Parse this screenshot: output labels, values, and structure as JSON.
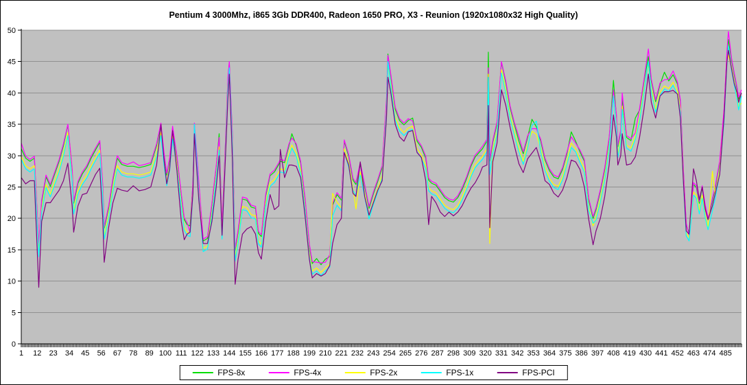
{
  "title": "Pentium 4 3000Mhz, i865 3Gb DDR400, Radeon 1650 PRO, X3 - Reunion (1920x1080x32 High Quality)",
  "chart_data": {
    "type": "line",
    "title": "Pentium 4 3000Mhz, i865 3Gb DDR400, Radeon 1650 PRO, X3 - Reunion (1920x1080x32 High Quality)",
    "plot_bg": "#c0c0c0",
    "gridline_color": "#909090",
    "grid": "horizontal",
    "legend_position": "bottom",
    "y_axis": {
      "min": 0,
      "max": 50,
      "tick_interval": 5,
      "tick_labels": [
        "0",
        "5",
        "10",
        "15",
        "20",
        "25",
        "30",
        "35",
        "40",
        "45",
        "50"
      ]
    },
    "x_axis": {
      "points_total": 496,
      "tick_step": 11,
      "tick_labels": [
        "1",
        "12",
        "23",
        "34",
        "45",
        "56",
        "67",
        "78",
        "89",
        "100",
        "111",
        "122",
        "133",
        "144",
        "155",
        "166",
        "177",
        "188",
        "199",
        "210",
        "221",
        "232",
        "243",
        "254",
        "265",
        "276",
        "287",
        "298",
        "309",
        "320",
        "331",
        "342",
        "353",
        "364",
        "375",
        "386",
        "397",
        "408",
        "419",
        "430",
        "441",
        "452",
        "463",
        "474",
        "485"
      ]
    },
    "x": [
      1,
      4,
      7,
      10,
      13,
      15,
      18,
      21,
      24,
      27,
      30,
      33,
      36,
      37,
      40,
      43,
      46,
      49,
      52,
      55,
      57,
      58,
      61,
      64,
      67,
      70,
      74,
      78,
      82,
      86,
      90,
      94,
      97,
      99,
      101,
      103,
      105,
      108,
      111,
      113,
      115,
      117,
      119,
      120,
      123,
      126,
      129,
      132,
      135,
      137,
      139,
      141,
      143,
      144,
      146,
      148,
      150,
      153,
      156,
      159,
      162,
      164,
      166,
      169,
      172,
      175,
      178,
      179,
      182,
      185,
      187,
      190,
      193,
      196,
      199,
      201,
      204,
      207,
      210,
      213,
      215,
      218,
      221,
      223,
      226,
      229,
      231,
      234,
      237,
      240,
      243,
      246,
      249,
      252,
      253,
      255,
      258,
      261,
      264,
      267,
      270,
      273,
      276,
      279,
      281,
      283,
      286,
      289,
      292,
      295,
      298,
      301,
      304,
      307,
      310,
      313,
      316,
      318,
      321,
      322,
      323,
      325,
      328,
      331,
      334,
      337,
      340,
      343,
      346,
      349,
      352,
      355,
      358,
      361,
      364,
      367,
      370,
      373,
      376,
      379,
      382,
      385,
      388,
      391,
      394,
      396,
      399,
      402,
      405,
      408,
      410,
      411,
      413,
      414,
      417,
      420,
      423,
      426,
      429,
      432,
      434,
      437,
      440,
      443,
      446,
      449,
      452,
      454,
      456,
      458,
      460,
      463,
      465,
      467,
      469,
      471,
      473,
      476,
      478,
      481,
      484,
      486,
      487,
      489,
      491,
      493,
      494,
      496
    ],
    "series": [
      {
        "name": "FPS-8x",
        "color": "#00dd00",
        "values": [
          31.1,
          29.6,
          29.1,
          29.6,
          15.6,
          22.6,
          26.6,
          25.1,
          27.1,
          29.1,
          31.6,
          34.9,
          27.6,
          22.4,
          25.6,
          27.1,
          28.1,
          29.6,
          30.9,
          32.1,
          25.1,
          18.4,
          21.6,
          26.1,
          29.6,
          28.6,
          28.3,
          28.3,
          28.1,
          28.3,
          28.6,
          31.6,
          34.9,
          30.4,
          26.9,
          29.4,
          34.4,
          29.6,
          23.6,
          19.8,
          19.0,
          18.8,
          25.6,
          34.9,
          25.6,
          16.4,
          16.8,
          22.1,
          28.1,
          33.5,
          18.4,
          30.1,
          42.1,
          44.8,
          33.6,
          14.9,
          17.8,
          23.1,
          22.9,
          21.8,
          21.6,
          17.6,
          17.1,
          23.6,
          26.8,
          27.4,
          28.6,
          29.1,
          28.9,
          31.6,
          33.5,
          31.6,
          28.8,
          23.1,
          15.6,
          12.8,
          13.6,
          12.6,
          13.5,
          13.9,
          22.1,
          23.8,
          22.9,
          32.3,
          29.9,
          26.1,
          25.4,
          28.6,
          25.1,
          21.6,
          23.9,
          25.9,
          28.1,
          38.6,
          46.2,
          42.6,
          37.4,
          35.6,
          34.9,
          35.6,
          36.0,
          32.3,
          31.3,
          29.6,
          26.1,
          25.6,
          25.3,
          24.3,
          23.3,
          22.8,
          22.6,
          23.3,
          24.6,
          26.3,
          28.3,
          29.8,
          30.6,
          31.1,
          32.3,
          46.5,
          29.1,
          32.1,
          35.1,
          44.9,
          41.6,
          37.6,
          34.9,
          32.3,
          30.3,
          32.9,
          35.8,
          34.6,
          32.3,
          29.3,
          27.6,
          26.6,
          26.3,
          27.8,
          30.3,
          33.8,
          32.3,
          30.6,
          29.1,
          22.9,
          20.0,
          21.4,
          24.3,
          27.8,
          32.6,
          42.0,
          36.3,
          31.4,
          33.8,
          39.1,
          32.9,
          32.4,
          36.0,
          37.3,
          41.9,
          45.8,
          41.9,
          38.6,
          41.3,
          43.3,
          41.9,
          42.9,
          41.4,
          38.6,
          27.6,
          18.9,
          17.7,
          25.4,
          24.9,
          22.4,
          24.9,
          21.9,
          19.8,
          22.9,
          24.9,
          28.9,
          37.1,
          46.4,
          48.5,
          45.4,
          42.9,
          40.6,
          39.0,
          40.0
        ]
      },
      {
        "name": "FPS-4x",
        "color": "#ff00ff",
        "values": [
          32.0,
          29.9,
          29.4,
          29.9,
          15.9,
          22.9,
          26.9,
          25.4,
          27.4,
          29.4,
          31.9,
          35.0,
          27.9,
          22.7,
          25.9,
          27.4,
          28.4,
          29.9,
          31.2,
          32.4,
          25.4,
          18.7,
          21.9,
          26.4,
          30.0,
          28.9,
          28.6,
          29.0,
          28.4,
          28.6,
          28.9,
          31.9,
          35.2,
          30.7,
          27.2,
          29.7,
          34.7,
          29.9,
          23.9,
          20.1,
          19.3,
          17.8,
          25.9,
          35.2,
          25.9,
          16.7,
          17.1,
          22.4,
          28.4,
          32.9,
          18.7,
          30.4,
          42.4,
          45.0,
          33.9,
          15.2,
          18.1,
          23.4,
          23.2,
          22.1,
          21.9,
          17.9,
          17.4,
          23.9,
          27.1,
          27.7,
          28.9,
          29.4,
          29.2,
          31.9,
          32.8,
          31.9,
          29.1,
          23.4,
          15.9,
          13.1,
          13.0,
          12.9,
          13.0,
          14.2,
          22.4,
          24.1,
          23.2,
          32.5,
          30.2,
          26.4,
          25.7,
          28.9,
          25.4,
          21.9,
          24.2,
          26.2,
          28.4,
          38.9,
          46.0,
          42.9,
          37.7,
          35.9,
          35.2,
          35.9,
          35.5,
          32.6,
          31.6,
          29.9,
          26.4,
          25.9,
          25.6,
          24.6,
          23.6,
          23.1,
          22.9,
          23.6,
          24.9,
          26.6,
          28.6,
          30.1,
          30.9,
          31.5,
          32.6,
          44.0,
          29.4,
          32.4,
          35.4,
          45.0,
          41.9,
          37.9,
          35.2,
          33.0,
          30.6,
          33.2,
          34.3,
          34.3,
          32.6,
          29.6,
          27.9,
          26.9,
          26.6,
          28.1,
          30.6,
          33.0,
          32.0,
          30.9,
          29.4,
          23.2,
          20.3,
          21.7,
          24.6,
          28.1,
          32.9,
          40.5,
          36.6,
          31.7,
          34.1,
          40.0,
          33.2,
          32.7,
          33.6,
          37.6,
          42.2,
          47.0,
          42.2,
          38.9,
          41.6,
          42.1,
          42.2,
          43.5,
          41.7,
          38.9,
          27.9,
          19.2,
          17.3,
          25.7,
          25.2,
          22.7,
          25.2,
          22.2,
          20.1,
          23.2,
          25.2,
          29.2,
          37.4,
          46.7,
          49.8,
          45.7,
          43.2,
          40.9,
          39.3,
          40.5
        ]
      },
      {
        "name": "FPS-2x",
        "color": "#ffff00",
        "values": [
          29.9,
          28.4,
          27.9,
          28.4,
          14.4,
          21.4,
          25.4,
          23.9,
          25.9,
          27.9,
          30.4,
          33.7,
          26.4,
          21.2,
          24.4,
          25.9,
          26.9,
          28.4,
          29.7,
          30.9,
          23.9,
          17.2,
          20.4,
          24.9,
          28.4,
          27.4,
          27.1,
          27.1,
          26.9,
          27.1,
          27.4,
          30.4,
          33.7,
          29.2,
          25.7,
          28.2,
          33.2,
          28.4,
          22.4,
          18.6,
          17.8,
          17.6,
          24.4,
          33.7,
          24.4,
          15.2,
          15.6,
          20.9,
          26.9,
          31.4,
          17.2,
          28.9,
          40.9,
          43.7,
          32.4,
          13.7,
          16.6,
          21.9,
          21.7,
          20.6,
          20.4,
          16.4,
          15.9,
          22.4,
          25.6,
          26.2,
          27.4,
          27.9,
          27.7,
          30.4,
          31.7,
          30.4,
          27.6,
          21.9,
          14.4,
          11.6,
          12.1,
          11.4,
          12.1,
          12.7,
          24.0,
          22.6,
          21.7,
          31.1,
          28.7,
          24.9,
          21.5,
          27.4,
          23.9,
          20.4,
          22.7,
          24.7,
          26.9,
          37.4,
          44.5,
          41.4,
          36.2,
          34.4,
          33.7,
          34.4,
          34.7,
          31.1,
          30.1,
          28.4,
          24.9,
          24.4,
          24.1,
          23.1,
          22.1,
          21.6,
          21.4,
          22.1,
          23.4,
          25.1,
          27.1,
          28.6,
          29.4,
          29.9,
          31.1,
          43.0,
          16.0,
          30.9,
          33.9,
          43.7,
          40.4,
          36.4,
          33.7,
          31.1,
          29.1,
          31.7,
          33.9,
          33.4,
          31.1,
          28.1,
          26.4,
          25.4,
          25.1,
          26.6,
          29.1,
          32.0,
          31.1,
          29.4,
          27.9,
          21.7,
          18.8,
          20.2,
          23.1,
          26.6,
          31.4,
          39.5,
          35.1,
          30.2,
          32.6,
          37.9,
          31.7,
          31.2,
          33.1,
          36.1,
          40.7,
          44.5,
          40.7,
          37.4,
          40.1,
          41.1,
          40.7,
          41.7,
          40.2,
          37.4,
          26.4,
          17.7,
          16.9,
          24.2,
          23.7,
          21.2,
          23.7,
          20.7,
          18.6,
          27.5,
          23.7,
          27.7,
          35.9,
          45.2,
          46.0,
          44.2,
          41.7,
          39.4,
          37.8,
          38.4
        ]
      },
      {
        "name": "FPS-1x",
        "color": "#00ffff",
        "values": [
          29.4,
          27.9,
          27.4,
          27.9,
          13.9,
          20.9,
          24.9,
          23.4,
          25.4,
          27.4,
          29.9,
          33.2,
          25.9,
          20.7,
          23.9,
          25.4,
          26.4,
          27.9,
          29.2,
          30.4,
          23.4,
          16.7,
          19.9,
          24.4,
          27.9,
          26.9,
          26.6,
          26.6,
          26.4,
          26.6,
          26.9,
          29.9,
          33.2,
          28.7,
          25.2,
          27.7,
          32.7,
          27.9,
          21.9,
          18.1,
          17.3,
          17.1,
          23.9,
          35.0,
          23.9,
          14.7,
          15.1,
          20.4,
          26.4,
          30.9,
          16.7,
          28.4,
          40.4,
          44.0,
          31.9,
          13.2,
          16.1,
          21.4,
          21.2,
          20.1,
          19.9,
          15.9,
          15.4,
          21.9,
          25.1,
          25.7,
          26.9,
          27.4,
          27.2,
          29.9,
          31.2,
          29.9,
          27.1,
          21.4,
          13.9,
          11.1,
          11.6,
          10.9,
          11.6,
          12.2,
          20.4,
          22.1,
          21.2,
          30.6,
          28.2,
          24.4,
          23.7,
          26.9,
          23.4,
          19.9,
          22.2,
          24.2,
          26.4,
          36.9,
          45.0,
          40.9,
          35.7,
          33.9,
          33.2,
          33.9,
          34.2,
          30.6,
          29.6,
          27.9,
          24.4,
          23.9,
          23.6,
          22.6,
          21.6,
          21.1,
          20.9,
          21.6,
          22.9,
          24.6,
          26.6,
          28.1,
          28.9,
          29.4,
          30.6,
          42.5,
          27.0,
          30.4,
          33.4,
          43.2,
          39.9,
          35.9,
          33.2,
          30.6,
          28.6,
          31.2,
          34.8,
          35.5,
          30.6,
          27.6,
          25.9,
          24.9,
          24.6,
          26.1,
          28.6,
          31.3,
          30.6,
          28.9,
          27.4,
          21.2,
          19.2,
          19.7,
          22.6,
          26.1,
          30.9,
          39.5,
          34.6,
          29.7,
          32.1,
          37.4,
          31.2,
          30.7,
          32.6,
          35.6,
          40.2,
          45.0,
          40.2,
          36.9,
          39.6,
          40.6,
          40.2,
          41.2,
          39.7,
          36.9,
          25.9,
          17.2,
          16.4,
          23.7,
          23.2,
          20.7,
          23.2,
          20.2,
          18.2,
          21.2,
          23.2,
          27.2,
          35.4,
          44.7,
          47.5,
          43.7,
          41.2,
          38.9,
          37.3,
          39.5
        ]
      },
      {
        "name": "FPS-PCI",
        "color": "#800080",
        "values": [
          26.5,
          25.5,
          26.0,
          26.0,
          9.0,
          19.5,
          22.5,
          22.5,
          23.5,
          24.5,
          26.0,
          28.8,
          22.0,
          17.8,
          22.0,
          23.8,
          24.0,
          25.5,
          27.0,
          28.0,
          20.0,
          13.0,
          18.5,
          22.5,
          24.8,
          24.5,
          24.3,
          25.2,
          24.4,
          24.6,
          25.0,
          28.5,
          35.0,
          29.5,
          25.5,
          28.0,
          34.0,
          27.5,
          19.5,
          16.6,
          17.5,
          17.8,
          24.0,
          33.5,
          23.0,
          16.0,
          16.0,
          19.5,
          25.0,
          30.0,
          17.3,
          28.0,
          39.0,
          43.0,
          30.0,
          9.5,
          13.5,
          17.5,
          18.3,
          18.7,
          17.5,
          14.5,
          13.5,
          19.5,
          23.8,
          21.4,
          22.0,
          31.0,
          26.5,
          28.5,
          28.5,
          28.3,
          26.5,
          20.5,
          13.5,
          10.5,
          11.2,
          10.8,
          11.2,
          12.5,
          16.0,
          19.0,
          20.0,
          30.5,
          28.5,
          24.0,
          23.5,
          29.0,
          23.5,
          20.5,
          22.5,
          24.5,
          26.0,
          36.0,
          42.5,
          40.0,
          35.0,
          33.0,
          32.3,
          33.8,
          34.0,
          30.5,
          29.7,
          26.0,
          19.0,
          23.5,
          22.5,
          21.0,
          20.3,
          21.0,
          20.4,
          21.0,
          22.0,
          23.5,
          24.8,
          25.7,
          27.0,
          28.2,
          28.5,
          38.0,
          18.5,
          29.0,
          32.0,
          40.5,
          38.0,
          34.5,
          31.5,
          28.7,
          27.3,
          29.5,
          30.4,
          31.3,
          29.0,
          26.0,
          25.4,
          24.0,
          23.4,
          24.5,
          26.5,
          29.3,
          29.0,
          27.8,
          25.0,
          19.8,
          15.8,
          18.0,
          20.0,
          23.5,
          28.5,
          36.5,
          33.0,
          28.5,
          30.0,
          33.5,
          28.5,
          28.7,
          29.8,
          33.0,
          37.5,
          43.0,
          38.5,
          36.0,
          39.5,
          40.2,
          40.2,
          40.4,
          39.8,
          36.0,
          26.0,
          18.0,
          17.5,
          27.9,
          26.0,
          23.0,
          25.0,
          21.5,
          19.8,
          22.0,
          24.0,
          27.0,
          36.0,
          45.0,
          46.8,
          44.0,
          41.5,
          40.0,
          38.5,
          40.0
        ]
      }
    ]
  }
}
